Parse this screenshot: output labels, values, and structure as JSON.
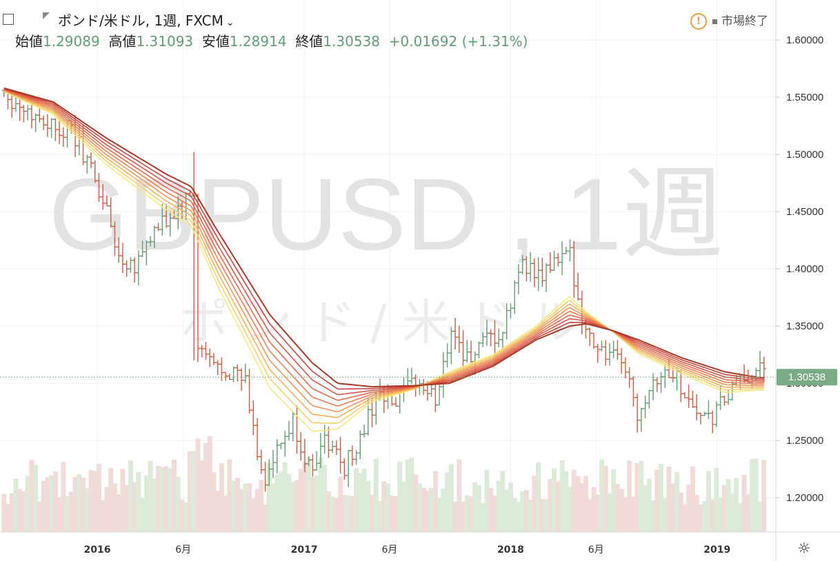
{
  "header": {
    "symbol_name": "ポンド/米ドル",
    "interval": "1週",
    "exchange": "FXCM",
    "dropdown_icon": "chevron-down-icon",
    "ohlc": [
      {
        "label": "始値",
        "value": "1.29089"
      },
      {
        "label": "高値",
        "value": "1.31093"
      },
      {
        "label": "安値",
        "value": "1.28914"
      },
      {
        "label": "終値",
        "value": "1.30538"
      }
    ],
    "change": "+0.01692",
    "change_pct": "(+1.31%)",
    "market_status": "市場終了"
  },
  "watermark": {
    "main": "GBPUSD , 1週",
    "sub": "ポンド/米ドル"
  },
  "colors": {
    "up": "#5f9e6e",
    "down": "#d05a3e",
    "up_volume": "#dcebd8",
    "down_volume": "#f1dbd8",
    "price_label_bg": "#7aab84",
    "ribbon": [
      "#f7e87c",
      "#f7cf6b",
      "#f5b05d",
      "#f19556",
      "#ec7d52",
      "#e4684b",
      "#d75645",
      "#c94640",
      "#a83a25"
    ]
  },
  "chart_data": {
    "type": "ohlc",
    "title": "GBPUSD , 1週",
    "ylim": [
      1.17,
      1.635
    ],
    "y_ticks": [
      "1.60000",
      "1.55000",
      "1.50000",
      "1.45000",
      "1.40000",
      "1.35000",
      "1.30000",
      "1.25000",
      "1.20000"
    ],
    "x_ticks": [
      {
        "date": "2016-01-01",
        "label": "2016",
        "bold": true
      },
      {
        "date": "2016-06-01",
        "label": "6月",
        "bold": false
      },
      {
        "date": "2017-01-01",
        "label": "2017",
        "bold": true
      },
      {
        "date": "2017-06-01",
        "label": "6月",
        "bold": false
      },
      {
        "date": "2018-01-01",
        "label": "2018",
        "bold": true
      },
      {
        "date": "2018-06-01",
        "label": "6月",
        "bold": false
      },
      {
        "date": "2019-01-01",
        "label": "2019",
        "bold": true
      }
    ],
    "x_range": [
      "2015-07-13",
      "2019-04-15"
    ],
    "last_price": "1.30538",
    "ribbon_base": [
      [
        "2015-07-20",
        1.555
      ],
      [
        "2015-10-15",
        1.535
      ],
      [
        "2016-01-15",
        1.492
      ],
      [
        "2016-05-01",
        1.452
      ],
      [
        "2016-06-15",
        1.438
      ],
      [
        "2016-08-01",
        1.385
      ],
      [
        "2016-11-01",
        1.296
      ],
      [
        "2017-01-15",
        1.258
      ],
      [
        "2017-03-01",
        1.26
      ],
      [
        "2017-05-01",
        1.284
      ],
      [
        "2017-07-15",
        1.295
      ],
      [
        "2017-09-15",
        1.31
      ],
      [
        "2017-12-01",
        1.325
      ],
      [
        "2018-02-15",
        1.35
      ],
      [
        "2018-04-15",
        1.376
      ],
      [
        "2018-05-15",
        1.362
      ],
      [
        "2018-07-01",
        1.345
      ],
      [
        "2018-08-15",
        1.326
      ],
      [
        "2018-11-01",
        1.308
      ],
      [
        "2019-01-15",
        1.292
      ],
      [
        "2019-03-15",
        1.294
      ]
    ],
    "ribbon_top": [
      [
        "2015-07-20",
        1.558
      ],
      [
        "2015-10-15",
        1.546
      ],
      [
        "2016-01-15",
        1.515
      ],
      [
        "2016-05-01",
        1.483
      ],
      [
        "2016-06-15",
        1.472
      ],
      [
        "2016-08-01",
        1.433
      ],
      [
        "2016-11-01",
        1.36
      ],
      [
        "2017-01-15",
        1.318
      ],
      [
        "2017-03-01",
        1.3
      ],
      [
        "2017-05-01",
        1.297
      ],
      [
        "2017-07-15",
        1.298
      ],
      [
        "2017-09-15",
        1.3
      ],
      [
        "2017-12-01",
        1.315
      ],
      [
        "2018-02-15",
        1.338
      ],
      [
        "2018-04-15",
        1.35
      ],
      [
        "2018-05-15",
        1.352
      ],
      [
        "2018-07-01",
        1.346
      ],
      [
        "2018-08-15",
        1.338
      ],
      [
        "2018-11-01",
        1.322
      ],
      [
        "2019-01-15",
        1.31
      ],
      [
        "2019-03-15",
        1.305
      ]
    ],
    "close_path": [
      [
        "2015-07-20",
        1.556
      ],
      [
        "2015-08-10",
        1.545
      ],
      [
        "2015-09-07",
        1.536
      ],
      [
        "2015-10-05",
        1.528
      ],
      [
        "2015-11-16",
        1.52
      ],
      [
        "2015-12-14",
        1.495
      ],
      [
        "2016-01-18",
        1.45
      ],
      [
        "2016-02-08",
        1.41
      ],
      [
        "2016-03-07",
        1.405
      ],
      [
        "2016-04-04",
        1.428
      ],
      [
        "2016-05-09",
        1.444
      ],
      [
        "2016-06-20",
        1.465
      ],
      [
        "2016-06-27",
        1.33
      ],
      [
        "2016-07-25",
        1.315
      ],
      [
        "2016-08-22",
        1.312
      ],
      [
        "2016-09-19",
        1.3
      ],
      [
        "2016-10-10",
        1.24
      ],
      [
        "2016-10-24",
        1.215
      ],
      [
        "2016-11-21",
        1.245
      ],
      [
        "2016-12-12",
        1.265
      ],
      [
        "2017-01-09",
        1.225
      ],
      [
        "2017-02-06",
        1.25
      ],
      [
        "2017-03-13",
        1.228
      ],
      [
        "2017-04-10",
        1.25
      ],
      [
        "2017-05-08",
        1.29
      ],
      [
        "2017-06-12",
        1.28
      ],
      [
        "2017-07-17",
        1.302
      ],
      [
        "2017-08-21",
        1.285
      ],
      [
        "2017-09-18",
        1.35
      ],
      [
        "2017-10-16",
        1.32
      ],
      [
        "2017-11-20",
        1.335
      ],
      [
        "2017-12-18",
        1.342
      ],
      [
        "2018-01-22",
        1.41
      ],
      [
        "2018-02-19",
        1.39
      ],
      [
        "2018-03-19",
        1.405
      ],
      [
        "2018-04-16",
        1.41
      ],
      [
        "2018-05-14",
        1.345
      ],
      [
        "2018-06-18",
        1.325
      ],
      [
        "2018-07-23",
        1.315
      ],
      [
        "2018-08-13",
        1.275
      ],
      [
        "2018-09-10",
        1.305
      ],
      [
        "2018-10-15",
        1.31
      ],
      [
        "2018-11-12",
        1.285
      ],
      [
        "2018-12-17",
        1.265
      ],
      [
        "2019-01-14",
        1.285
      ],
      [
        "2019-02-11",
        1.3
      ],
      [
        "2019-03-11",
        1.315
      ],
      [
        "2019-03-25",
        1.305
      ]
    ]
  }
}
